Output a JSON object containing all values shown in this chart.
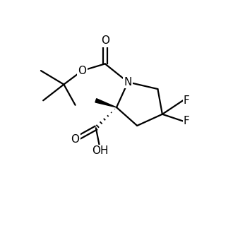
{
  "background_color": "#ffffff",
  "line_color": "#000000",
  "line_width": 1.6,
  "font_size": 10,
  "figsize": [
    3.3,
    3.3
  ],
  "dpi": 100,
  "xlim": [
    0,
    10
  ],
  "ylim": [
    0,
    10
  ]
}
